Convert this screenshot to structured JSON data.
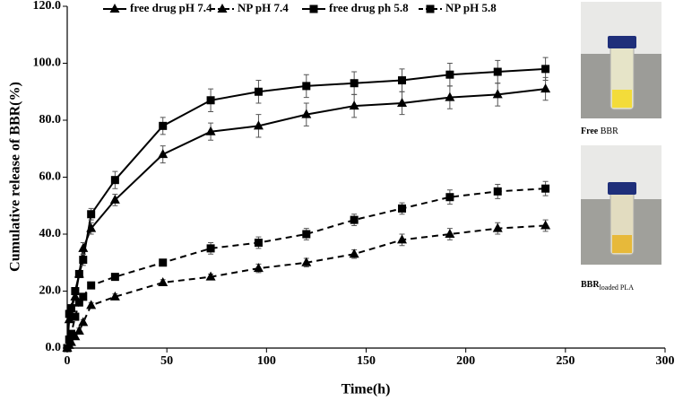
{
  "chart_data": {
    "type": "line",
    "x_label": "Time(h)",
    "y_label": "Cumulative release of BBR(%)",
    "x": [
      0,
      1,
      2,
      4,
      6,
      8,
      12,
      24,
      48,
      72,
      96,
      120,
      144,
      168,
      192,
      216,
      240
    ],
    "series": [
      {
        "name": "free drug pH 7.4",
        "color": "#000000",
        "marker": "triangle",
        "dash": false,
        "values": [
          0,
          10,
          14,
          18,
          26,
          35,
          42,
          52,
          68,
          76,
          78,
          82,
          85,
          86,
          88,
          89,
          91
        ],
        "errors": [
          1,
          1,
          1,
          1,
          1,
          2,
          2,
          2,
          3,
          3,
          4,
          4,
          4,
          4,
          4,
          4,
          4
        ]
      },
      {
        "name": "NP pH 7.4",
        "color": "#000000",
        "marker": "triangle",
        "dash": true,
        "values": [
          0,
          1,
          2,
          4,
          6,
          9,
          15,
          18,
          23,
          25,
          28,
          30,
          33,
          38,
          40,
          42,
          43
        ],
        "errors": [
          0.5,
          0.5,
          0.5,
          1,
          1,
          1,
          1,
          1,
          1,
          1,
          1.5,
          1.5,
          1.5,
          2,
          2,
          2,
          2
        ]
      },
      {
        "name": "free drug ph 5.8",
        "color": "#000000",
        "marker": "square",
        "dash": false,
        "values": [
          0,
          12,
          14,
          20,
          26,
          31,
          47,
          59,
          78,
          87,
          90,
          92,
          93,
          94,
          96,
          97,
          98
        ],
        "errors": [
          1,
          1,
          1,
          1,
          1,
          2,
          2,
          3,
          3,
          4,
          4,
          4,
          4,
          4,
          4,
          4,
          4
        ]
      },
      {
        "name": "NP pH 5.8",
        "color": "#000000",
        "marker": "square",
        "dash": true,
        "values": [
          0,
          3,
          5,
          11,
          16,
          18,
          22,
          25,
          30,
          35,
          37,
          40,
          45,
          49,
          53,
          55,
          56
        ],
        "errors": [
          0.5,
          0.5,
          1,
          1,
          1,
          1,
          1,
          1,
          1,
          2,
          2,
          2,
          2,
          2,
          2.5,
          2.5,
          2.5
        ]
      }
    ],
    "xlim": [
      0,
      300
    ],
    "xticks": [
      0,
      50,
      100,
      150,
      200,
      250,
      300
    ],
    "ylim": [
      0,
      120
    ],
    "yticks": [
      {
        "value": 0,
        "label": "0.0"
      },
      {
        "value": 20,
        "label": "20.0"
      },
      {
        "value": 40,
        "label": "40.0"
      },
      {
        "value": 60,
        "label": "60.0"
      },
      {
        "value": 80,
        "label": "80.0"
      },
      {
        "value": 100,
        "label": "100.0"
      },
      {
        "value": 120,
        "label": "120.0"
      }
    ],
    "grid": false,
    "legend": "top"
  },
  "insets": [
    {
      "caption_bold": "Free",
      "caption": "BBR"
    },
    {
      "caption_bold": "BBR",
      "caption_sub": "loaded PLA"
    }
  ]
}
